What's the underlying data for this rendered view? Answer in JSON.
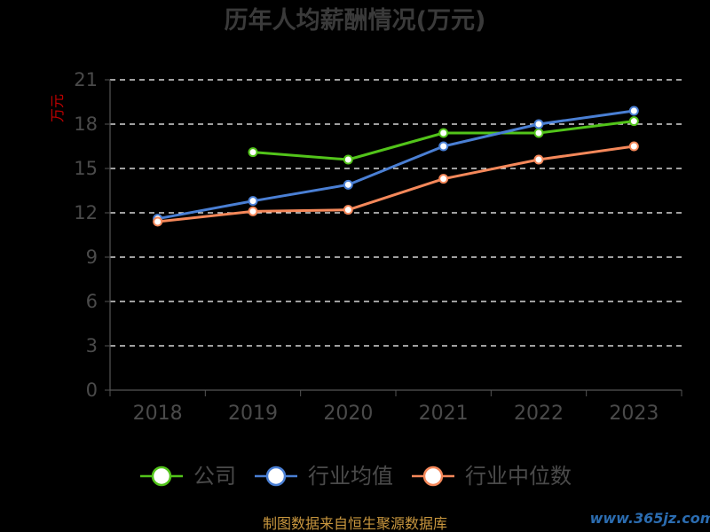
{
  "chart_data": {
    "type": "line",
    "title": "历年人均薪酬情况(万元)",
    "ylabel": "万元",
    "xlabel": "",
    "categories": [
      "2018",
      "2019",
      "2020",
      "2021",
      "2022",
      "2023"
    ],
    "ylim": [
      0,
      21
    ],
    "yticks": [
      0,
      3,
      6,
      9,
      12,
      15,
      18,
      21
    ],
    "grid": true,
    "legend_position": "bottom",
    "series": [
      {
        "name": "公司",
        "color": "#52c41a",
        "values": [
          null,
          16.1,
          15.6,
          17.4,
          17.4,
          18.2
        ]
      },
      {
        "name": "行业均值",
        "color": "#4a7fd4",
        "values": [
          11.6,
          12.8,
          13.9,
          16.5,
          18.0,
          18.9
        ]
      },
      {
        "name": "行业中位数",
        "color": "#f5885a",
        "values": [
          11.4,
          12.1,
          12.2,
          14.3,
          15.6,
          16.5
        ]
      }
    ]
  },
  "footer": {
    "source": "制图数据来自恒生聚源数据库",
    "watermark": "www.365jz.com"
  }
}
